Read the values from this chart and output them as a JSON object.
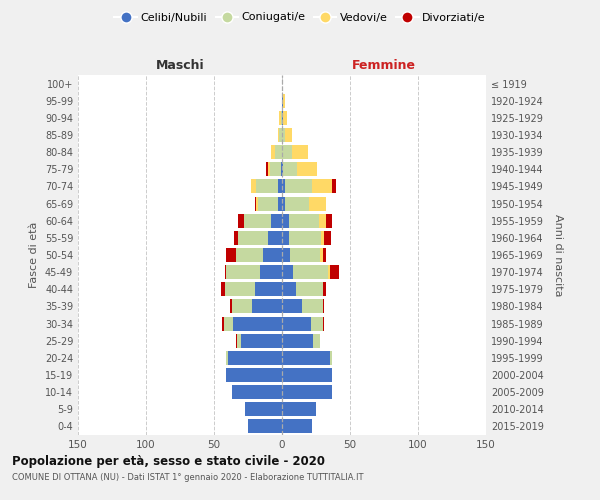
{
  "age_groups": [
    "0-4",
    "5-9",
    "10-14",
    "15-19",
    "20-24",
    "25-29",
    "30-34",
    "35-39",
    "40-44",
    "45-49",
    "50-54",
    "55-59",
    "60-64",
    "65-69",
    "70-74",
    "75-79",
    "80-84",
    "85-89",
    "90-94",
    "95-99",
    "100+"
  ],
  "birth_years": [
    "2015-2019",
    "2010-2014",
    "2005-2009",
    "2000-2004",
    "1995-1999",
    "1990-1994",
    "1985-1989",
    "1980-1984",
    "1975-1979",
    "1970-1974",
    "1965-1969",
    "1960-1964",
    "1955-1959",
    "1950-1954",
    "1945-1949",
    "1940-1944",
    "1935-1939",
    "1930-1934",
    "1925-1929",
    "1920-1924",
    "≤ 1919"
  ],
  "male": {
    "celibi": [
      25,
      27,
      37,
      41,
      40,
      30,
      36,
      22,
      20,
      16,
      14,
      10,
      8,
      3,
      3,
      1,
      0,
      0,
      0,
      0,
      0
    ],
    "coniugati": [
      0,
      0,
      0,
      0,
      1,
      3,
      7,
      15,
      22,
      25,
      20,
      22,
      20,
      15,
      16,
      8,
      5,
      2,
      1,
      0,
      0
    ],
    "vedovi": [
      0,
      0,
      0,
      0,
      0,
      0,
      0,
      0,
      0,
      0,
      0,
      0,
      0,
      1,
      4,
      1,
      3,
      1,
      1,
      0,
      0
    ],
    "divorziati": [
      0,
      0,
      0,
      0,
      0,
      1,
      1,
      1,
      3,
      1,
      7,
      3,
      4,
      1,
      0,
      2,
      0,
      0,
      0,
      0,
      0
    ]
  },
  "female": {
    "nubili": [
      22,
      25,
      37,
      37,
      35,
      23,
      21,
      15,
      10,
      8,
      6,
      5,
      5,
      2,
      2,
      1,
      0,
      0,
      1,
      1,
      0
    ],
    "coniugate": [
      0,
      0,
      0,
      0,
      2,
      5,
      9,
      15,
      20,
      26,
      22,
      24,
      22,
      18,
      20,
      10,
      7,
      2,
      0,
      0,
      0
    ],
    "vedove": [
      0,
      0,
      0,
      0,
      0,
      0,
      0,
      0,
      0,
      1,
      2,
      2,
      5,
      12,
      15,
      15,
      12,
      5,
      3,
      1,
      0
    ],
    "divorziate": [
      0,
      0,
      0,
      0,
      0,
      0,
      1,
      1,
      2,
      7,
      2,
      5,
      5,
      0,
      3,
      0,
      0,
      0,
      0,
      0,
      0
    ]
  },
  "colors": {
    "celibi": "#4472C4",
    "coniugati": "#c5d9a0",
    "vedovi": "#FFD966",
    "divorziati": "#C00000"
  },
  "title": "Popolazione per età, sesso e stato civile - 2020",
  "subtitle": "COMUNE DI OTTANA (NU) - Dati ISTAT 1° gennaio 2020 - Elaborazione TUTTITALIA.IT",
  "xlabel_left": "Maschi",
  "xlabel_right": "Femmine",
  "ylabel_left": "Fasce di età",
  "ylabel_right": "Anni di nascita",
  "xlim": 150,
  "legend_labels": [
    "Celibi/Nubili",
    "Coniugati/e",
    "Vedovi/e",
    "Divorziati/e"
  ],
  "bg_color": "#f0f0f0",
  "plot_bg": "#ffffff"
}
